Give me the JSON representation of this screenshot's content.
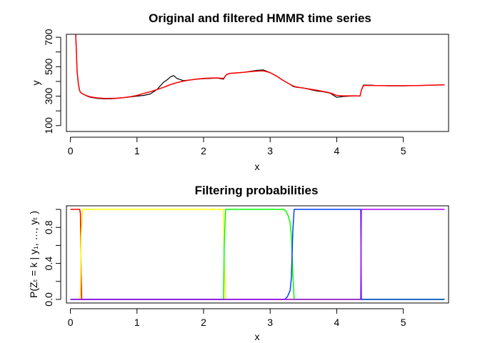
{
  "chart_data": [
    {
      "type": "line",
      "title": "Original and filtered HMMR time series",
      "xlabel": "x",
      "ylabel": "y",
      "xlim": [
        -0.06,
        5.68
      ],
      "ylim": [
        60,
        720
      ],
      "x_ticks": [
        0,
        1,
        2,
        3,
        4,
        5
      ],
      "x_tick_labels": [
        "0",
        "1",
        "2",
        "3",
        "4",
        "5"
      ],
      "y_ticks": [
        100,
        300,
        500,
        700
      ],
      "y_tick_labels": [
        "100",
        "300",
        "500",
        "700"
      ],
      "y_minor_ticks": [
        200,
        400,
        600
      ],
      "grid": false,
      "legend": "none",
      "series": [
        {
          "role": "original",
          "color": "#000000",
          "x": [
            0.08,
            0.09,
            0.1,
            0.12,
            0.14,
            0.16,
            0.2,
            0.25,
            0.3,
            0.4,
            0.5,
            0.6,
            0.7,
            0.8,
            0.9,
            1.0,
            1.1,
            1.2,
            1.3,
            1.35,
            1.4,
            1.45,
            1.5,
            1.55,
            1.6,
            1.7,
            1.8,
            1.9,
            2.0,
            2.1,
            2.2,
            2.3,
            2.32,
            2.35,
            2.4,
            2.5,
            2.6,
            2.7,
            2.8,
            2.9,
            3.0,
            3.1,
            3.2,
            3.3,
            3.35,
            3.4,
            3.5,
            3.6,
            3.7,
            3.8,
            3.9,
            4.0,
            4.1,
            4.2,
            4.3,
            4.35,
            4.37,
            4.4,
            4.5,
            4.6,
            4.8,
            5.0,
            5.2,
            5.4,
            5.62
          ],
          "y": [
            720,
            600,
            470,
            380,
            335,
            322,
            312,
            300,
            292,
            285,
            282,
            282,
            285,
            290,
            295,
            300,
            305,
            315,
            345,
            370,
            395,
            410,
            430,
            440,
            420,
            405,
            410,
            415,
            418,
            420,
            423,
            415,
            432,
            448,
            455,
            458,
            462,
            468,
            475,
            478,
            460,
            435,
            405,
            380,
            365,
            360,
            355,
            345,
            335,
            330,
            320,
            292,
            298,
            300,
            302,
            300,
            340,
            375,
            375,
            372,
            370,
            370,
            372,
            374,
            377
          ]
        },
        {
          "role": "filtered",
          "color": "#ff0000",
          "x": [
            0.08,
            0.09,
            0.1,
            0.12,
            0.14,
            0.16,
            0.2,
            0.25,
            0.3,
            0.4,
            0.5,
            0.6,
            0.7,
            0.8,
            0.9,
            1.0,
            1.1,
            1.2,
            1.3,
            1.4,
            1.5,
            1.6,
            1.7,
            1.8,
            1.9,
            2.0,
            2.1,
            2.2,
            2.3,
            2.32,
            2.35,
            2.4,
            2.5,
            2.6,
            2.7,
            2.8,
            2.9,
            3.0,
            3.1,
            3.2,
            3.3,
            3.35,
            3.4,
            3.5,
            3.6,
            3.7,
            3.8,
            3.9,
            4.0,
            4.1,
            4.2,
            4.3,
            4.35,
            4.37,
            4.4,
            4.5,
            4.6,
            4.8,
            5.0,
            5.2,
            5.4,
            5.62
          ],
          "y": [
            720,
            600,
            470,
            380,
            335,
            322,
            312,
            302,
            295,
            288,
            285,
            284,
            286,
            290,
            296,
            305,
            318,
            330,
            345,
            360,
            378,
            392,
            402,
            410,
            416,
            420,
            423,
            424,
            420,
            432,
            448,
            455,
            458,
            462,
            466,
            470,
            472,
            460,
            435,
            405,
            380,
            368,
            362,
            355,
            348,
            340,
            332,
            322,
            305,
            302,
            302,
            302,
            300,
            340,
            372,
            373,
            372,
            371,
            371,
            372,
            374,
            377
          ]
        }
      ]
    },
    {
      "type": "line",
      "title": "Filtering probabilities",
      "xlabel": "x",
      "ylabel": "P(Zₜ = k | y₁, …, yₜ )",
      "xlim": [
        -0.06,
        5.68
      ],
      "ylim": [
        -0.04,
        1.04
      ],
      "x_ticks": [
        0,
        1,
        2,
        3,
        4,
        5
      ],
      "x_tick_labels": [
        "0",
        "1",
        "2",
        "3",
        "4",
        "5"
      ],
      "y_ticks": [
        0.0,
        0.4,
        0.8
      ],
      "y_tick_labels": [
        "0.0",
        "0.4",
        "0.8"
      ],
      "y_minor_ticks": [
        0.2,
        0.6,
        1.0
      ],
      "grid": false,
      "legend": "none",
      "series": [
        {
          "color": "#ff0000",
          "x": [
            0.0,
            0.14,
            0.15,
            0.16,
            0.17,
            5.62
          ],
          "y": [
            1.0,
            1.0,
            0.95,
            0.3,
            0.0,
            0.0
          ]
        },
        {
          "color": "#ffff00",
          "x": [
            0.0,
            0.14,
            0.15,
            0.16,
            0.18,
            2.3,
            2.31,
            2.33,
            5.62
          ],
          "y": [
            0.0,
            0.0,
            0.05,
            0.7,
            1.0,
            1.0,
            0.4,
            0.0,
            0.0
          ]
        },
        {
          "color": "#00ff00",
          "x": [
            0.0,
            2.3,
            2.31,
            2.33,
            3.2,
            3.24,
            3.27,
            3.3,
            3.32,
            3.34,
            3.36,
            5.62
          ],
          "y": [
            0.0,
            0.0,
            0.6,
            1.0,
            1.0,
            0.98,
            0.93,
            0.85,
            0.7,
            0.3,
            0.0,
            0.0
          ]
        },
        {
          "color": "#0044ff",
          "x": [
            0.0,
            3.22,
            3.26,
            3.3,
            3.32,
            3.34,
            3.36,
            4.36,
            4.37,
            5.62
          ],
          "y": [
            0.0,
            0.0,
            0.03,
            0.1,
            0.25,
            0.75,
            1.0,
            1.0,
            0.0,
            0.0
          ]
        },
        {
          "color": "#aa00ff",
          "x": [
            0.0,
            4.36,
            4.37,
            5.62
          ],
          "y": [
            0.0,
            0.0,
            1.0,
            1.0
          ]
        }
      ]
    }
  ]
}
